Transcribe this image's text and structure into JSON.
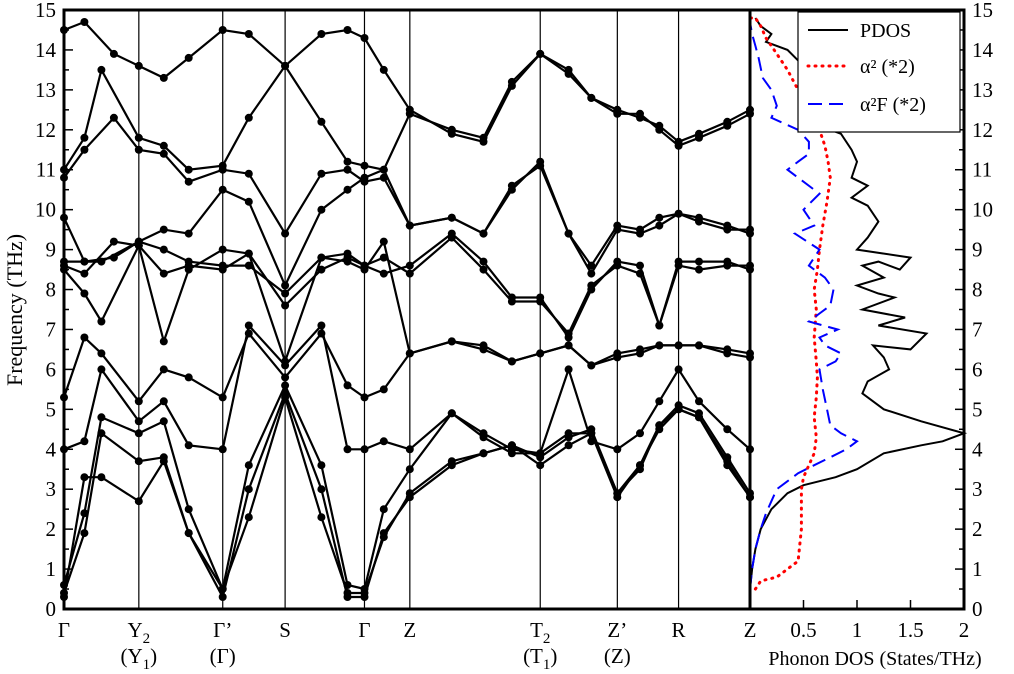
{
  "chart_data": [
    {
      "type": "line",
      "ylabel": "Frequency (THz)",
      "ylim": [
        0,
        15
      ],
      "yticks": [
        "0",
        "1",
        "2",
        "3",
        "4",
        "5",
        "6",
        "7",
        "8",
        "9",
        "10",
        "11",
        "12",
        "13",
        "14",
        "15"
      ],
      "kpoints": [
        {
          "label": "Γ",
          "sub": "",
          "second": ""
        },
        {
          "label": "Y",
          "sub": "2",
          "second": "(Y",
          "second_sub": "1",
          "second_tail": ")"
        },
        {
          "label": "Γ’",
          "sub": "",
          "second": "(Γ)"
        },
        {
          "label": "S",
          "sub": "",
          "second": ""
        },
        {
          "label": "Γ",
          "sub": "",
          "second": ""
        },
        {
          "label": "Z",
          "sub": "",
          "second": ""
        },
        {
          "label": "T",
          "sub": "2",
          "second": "(T",
          "second_sub": "1",
          "second_tail": ")"
        },
        {
          "label": "Z’",
          "sub": "",
          "second": "(Z)"
        },
        {
          "label": "R",
          "sub": "",
          "second": ""
        },
        {
          "label": "Z",
          "sub": "",
          "second": ""
        }
      ],
      "kpoint_positions": [
        0,
        0.66,
        1.4,
        1.95,
        2.65,
        3.05,
        4.2,
        4.88,
        5.42,
        6.05
      ],
      "series": [
        {
          "x": [
            0,
            0.18,
            0.44,
            0.66,
            0.88,
            1.1,
            1.4,
            1.63,
            1.95,
            2.27,
            2.5,
            2.65,
            2.82,
            3.05,
            3.42,
            3.7,
            3.95,
            4.2,
            4.45,
            4.65,
            4.88,
            5.08,
            5.25,
            5.42,
            5.6,
            5.85,
            6.05
          ],
          "y": [
            14.5,
            14.7,
            13.9,
            13.6,
            13.3,
            13.8,
            14.5,
            14.4,
            13.6,
            14.4,
            14.5,
            14.3,
            13.5,
            12.5,
            11.9,
            11.7,
            13.1,
            13.9,
            13.4,
            12.8,
            12.4,
            12.4,
            12.0,
            11.6,
            11.8,
            12.1,
            12.4
          ]
        },
        {
          "x": [
            0,
            0.18,
            0.33,
            0.66,
            0.88,
            1.1,
            1.4,
            1.63,
            1.95,
            2.27,
            2.5,
            2.65,
            2.82,
            3.05,
            3.42,
            3.7,
            3.95,
            4.2,
            4.45,
            4.65,
            4.88,
            5.08,
            5.25,
            5.42,
            5.6,
            5.85,
            6.05
          ],
          "y": [
            11.0,
            11.8,
            13.5,
            11.8,
            11.6,
            11.0,
            11.1,
            12.3,
            13.6,
            12.2,
            11.2,
            11.1,
            11.0,
            12.4,
            12.0,
            11.8,
            13.2,
            13.9,
            13.5,
            12.8,
            12.5,
            12.3,
            12.1,
            11.7,
            11.9,
            12.2,
            12.5
          ]
        },
        {
          "x": [
            0,
            0.18,
            0.44,
            0.66,
            0.88,
            1.1,
            1.4,
            1.63,
            1.95,
            2.27,
            2.5,
            2.65,
            2.82,
            3.05,
            3.42,
            3.7,
            3.95,
            4.2,
            4.45,
            4.65,
            4.88,
            5.08,
            5.25,
            5.42,
            5.6,
            5.85,
            6.05
          ],
          "y": [
            10.8,
            11.5,
            12.3,
            11.5,
            11.4,
            10.7,
            11.0,
            10.9,
            9.4,
            10.9,
            11.0,
            10.7,
            10.8,
            9.6,
            9.8,
            9.4,
            10.6,
            11.1,
            9.4,
            8.6,
            9.6,
            9.5,
            9.8,
            9.9,
            9.7,
            9.5,
            9.5
          ]
        },
        {
          "x": [
            0,
            0.18,
            0.44,
            0.66,
            0.88,
            1.1,
            1.4,
            1.63,
            1.95,
            2.27,
            2.5,
            2.65,
            2.82,
            3.05,
            3.42,
            3.7,
            3.95,
            4.2,
            4.45,
            4.65,
            4.88,
            5.08,
            5.25,
            5.42,
            5.6,
            5.85,
            6.05
          ],
          "y": [
            9.8,
            8.7,
            8.8,
            9.2,
            9.5,
            9.4,
            10.5,
            10.2,
            8.1,
            10.0,
            10.5,
            10.8,
            11.0,
            9.6,
            9.8,
            9.4,
            10.5,
            11.2,
            9.4,
            8.4,
            9.5,
            9.4,
            9.6,
            9.9,
            9.8,
            9.6,
            9.4
          ]
        },
        {
          "x": [
            0,
            0.18,
            0.33,
            0.66,
            0.88,
            1.1,
            1.4,
            1.63,
            1.95,
            2.27,
            2.5,
            2.65,
            2.82,
            3.05,
            3.42,
            3.7,
            3.95,
            4.2,
            4.45,
            4.65,
            4.88,
            5.08,
            5.25,
            5.42,
            5.6,
            5.85,
            6.05
          ],
          "y": [
            8.7,
            8.7,
            8.7,
            9.2,
            9.0,
            8.7,
            8.6,
            8.6,
            7.9,
            8.8,
            8.9,
            8.6,
            8.4,
            8.6,
            9.4,
            8.7,
            7.8,
            7.8,
            6.8,
            8.0,
            8.7,
            8.6,
            7.1,
            8.7,
            8.7,
            8.7,
            8.5
          ]
        },
        {
          "x": [
            0,
            0.18,
            0.33,
            0.66,
            0.88,
            1.1,
            1.4,
            1.63,
            1.95,
            2.27,
            2.5,
            2.65,
            2.82,
            3.05,
            3.42,
            3.7,
            3.95,
            4.2,
            4.45,
            4.65,
            4.88,
            5.08,
            5.25,
            5.42,
            5.6,
            5.85,
            6.05
          ],
          "y": [
            8.5,
            7.9,
            7.2,
            9.1,
            8.4,
            8.6,
            8.5,
            8.9,
            7.6,
            8.5,
            8.8,
            8.6,
            8.8,
            8.4,
            9.3,
            8.5,
            7.7,
            7.7,
            6.9,
            8.1,
            8.6,
            8.4,
            7.1,
            8.6,
            8.5,
            8.6,
            8.6
          ]
        },
        {
          "x": [
            0,
            0.18,
            0.44,
            0.66,
            0.88,
            1.1,
            1.4,
            1.63,
            1.95,
            2.27,
            2.5,
            2.65,
            2.82,
            3.05,
            3.42,
            3.7,
            3.95,
            4.2,
            4.45,
            4.65,
            4.88,
            5.08,
            5.25,
            5.42,
            5.6,
            5.85,
            6.05
          ],
          "y": [
            8.6,
            8.4,
            9.2,
            9.1,
            6.7,
            8.5,
            9.0,
            8.9,
            6.2,
            8.8,
            8.7,
            8.5,
            9.2,
            6.4,
            6.7,
            6.5,
            6.2,
            6.4,
            6.6,
            6.1,
            6.4,
            6.5,
            6.6,
            6.6,
            6.6,
            6.5,
            6.4
          ]
        },
        {
          "x": [
            0,
            0.18,
            0.33,
            0.66,
            0.88,
            1.1,
            1.4,
            1.63,
            1.95,
            2.27,
            2.5,
            2.65,
            2.82,
            3.05,
            3.42,
            3.7,
            3.95,
            4.2,
            4.45,
            4.65,
            4.88,
            5.08,
            5.25,
            5.42,
            5.6,
            5.85,
            6.05
          ],
          "y": [
            5.3,
            6.8,
            6.4,
            5.2,
            6.0,
            5.8,
            5.3,
            6.9,
            5.8,
            6.9,
            5.6,
            5.3,
            5.5,
            6.4,
            6.7,
            6.6,
            6.2,
            6.4,
            6.6,
            6.1,
            6.3,
            6.4,
            6.6,
            6.6,
            6.6,
            6.4,
            6.3
          ]
        },
        {
          "x": [
            0,
            0.18,
            0.33,
            0.66,
            0.88,
            1.1,
            1.4,
            1.63,
            1.95,
            2.27,
            2.5,
            2.65,
            2.82,
            3.05,
            3.42,
            3.7,
            3.95,
            4.2,
            4.45,
            4.65,
            4.88,
            5.08,
            5.25,
            5.42,
            5.6,
            5.85,
            6.05
          ],
          "y": [
            4.0,
            4.2,
            6.0,
            4.7,
            5.2,
            4.1,
            4.0,
            7.1,
            6.1,
            7.1,
            4.0,
            4.0,
            4.2,
            4.0,
            4.9,
            4.4,
            4.0,
            3.9,
            6.0,
            4.2,
            4.0,
            4.4,
            5.2,
            6.0,
            5.2,
            4.5,
            4.0
          ]
        },
        {
          "x": [
            0,
            0.18,
            0.33,
            0.66,
            0.88,
            1.1,
            1.4,
            1.63,
            1.95,
            2.27,
            2.5,
            2.65,
            2.82,
            3.05,
            3.42,
            3.7,
            3.95,
            4.2,
            4.45,
            4.65,
            4.88,
            5.08,
            5.25,
            5.42,
            5.6,
            5.85,
            6.05
          ],
          "y": [
            0.6,
            2.4,
            4.8,
            4.4,
            4.7,
            2.5,
            0.5,
            3.6,
            5.6,
            3.6,
            0.6,
            0.5,
            2.5,
            3.5,
            4.9,
            4.3,
            3.9,
            3.9,
            4.4,
            4.4,
            2.9,
            3.6,
            4.6,
            5.1,
            4.9,
            3.8,
            2.9
          ]
        },
        {
          "x": [
            0,
            0.18,
            0.33,
            0.66,
            0.88,
            1.1,
            1.4,
            1.63,
            1.95,
            2.27,
            2.5,
            2.65,
            2.82,
            3.05,
            3.42,
            3.7,
            3.95,
            4.2,
            4.45,
            4.65,
            4.88,
            5.08,
            5.25,
            5.42,
            5.6,
            5.85,
            6.05
          ],
          "y": [
            0.4,
            1.9,
            4.4,
            3.7,
            3.8,
            1.9,
            0.3,
            3.0,
            5.4,
            3.0,
            0.3,
            0.3,
            1.9,
            2.8,
            3.6,
            3.9,
            4.1,
            3.6,
            4.1,
            4.4,
            2.8,
            3.6,
            4.5,
            5.0,
            4.8,
            3.6,
            2.8
          ]
        },
        {
          "x": [
            0,
            0.18,
            0.33,
            0.66,
            0.88,
            1.1,
            1.4,
            1.63,
            1.95,
            2.27,
            2.5,
            2.65,
            2.82,
            3.05,
            3.42,
            3.7,
            3.95,
            4.2,
            4.45,
            4.65,
            4.88,
            5.08,
            5.25,
            5.42,
            5.6,
            5.85,
            6.05
          ],
          "y": [
            0.3,
            3.3,
            3.3,
            2.7,
            3.7,
            1.9,
            0.5,
            2.3,
            5.3,
            2.3,
            0.4,
            0.4,
            1.8,
            2.9,
            3.7,
            3.9,
            4.1,
            3.8,
            4.3,
            4.5,
            2.9,
            3.5,
            4.6,
            5.0,
            4.8,
            3.7,
            2.8
          ]
        }
      ]
    },
    {
      "type": "line",
      "xlabel": "Phonon DOS (States/THz)",
      "xlim": [
        0,
        2
      ],
      "ylim": [
        0,
        15
      ],
      "xticks": [
        "Z",
        "0.5",
        "1",
        "1.5",
        "2"
      ],
      "yticks": [
        "0",
        "1",
        "2",
        "3",
        "4",
        "5",
        "6",
        "7",
        "8",
        "9",
        "10",
        "11",
        "12",
        "13",
        "14",
        "15"
      ],
      "legend_position": "top-right",
      "series": [
        {
          "name": "PDOS",
          "color": "#000000",
          "style": "solid",
          "x": [
            0.0,
            0.02,
            0.05,
            0.1,
            0.2,
            0.35,
            0.5,
            0.65,
            0.8,
            1.0,
            1.25,
            1.6,
            1.8,
            1.9,
            2.0,
            1.6,
            1.25,
            1.05,
            1.1,
            1.3,
            1.25,
            1.15,
            1.5,
            1.65,
            1.2,
            1.45,
            1.05,
            1.35,
            1.2,
            1.0,
            1.25,
            1.05,
            1.2,
            1.4,
            1.5,
            1.0,
            1.1,
            1.2,
            1.1,
            0.95,
            1.1,
            0.95,
            1.0,
            0.95,
            0.85,
            0.65,
            0.95,
            0.8,
            0.7,
            0.6,
            0.5,
            0.35,
            0.15,
            0.2,
            0.1,
            0.05
          ],
          "y": [
            0.5,
            1.0,
            1.5,
            2.0,
            2.5,
            2.9,
            3.1,
            3.2,
            3.3,
            3.5,
            3.9,
            4.1,
            4.2,
            4.3,
            4.4,
            4.7,
            5.0,
            5.4,
            5.7,
            6.0,
            6.3,
            6.6,
            6.5,
            6.9,
            7.1,
            7.3,
            7.5,
            7.8,
            7.9,
            8.1,
            8.3,
            8.6,
            8.7,
            8.5,
            8.8,
            9.0,
            9.3,
            9.7,
            10.1,
            10.3,
            10.6,
            10.8,
            11.2,
            11.5,
            11.9,
            12.1,
            12.4,
            12.7,
            13.0,
            13.4,
            13.6,
            14.0,
            14.2,
            14.4,
            14.6,
            14.8
          ]
        },
        {
          "name": "α² (*2)",
          "color": "#ff0000",
          "style": "dotted",
          "x": [
            0.05,
            0.1,
            0.25,
            0.45,
            0.48,
            0.48,
            0.48,
            0.5,
            0.55,
            0.6,
            0.62,
            0.6,
            0.62,
            0.63,
            0.62,
            0.6,
            0.62,
            0.6,
            0.63,
            0.65,
            0.68,
            0.72,
            0.75,
            0.73,
            0.7,
            0.65,
            0.55,
            0.45,
            0.35,
            0.25,
            0.15,
            0.1,
            0.05,
            0.0
          ],
          "y": [
            0.5,
            0.7,
            0.8,
            1.2,
            2.0,
            2.5,
            3.0,
            3.3,
            3.6,
            3.9,
            4.3,
            4.8,
            5.3,
            5.8,
            6.2,
            6.8,
            7.5,
            8.0,
            8.5,
            9.0,
            9.6,
            10.2,
            10.8,
            11.2,
            11.6,
            12.0,
            12.5,
            13.0,
            13.5,
            13.9,
            14.3,
            14.6,
            14.8,
            14.8
          ]
        },
        {
          "name": "α²F (*2)",
          "color": "#0000ff",
          "style": "dashed",
          "x": [
            0.0,
            0.02,
            0.05,
            0.1,
            0.15,
            0.2,
            0.25,
            0.35,
            0.45,
            0.6,
            0.75,
            0.9,
            1.0,
            0.85,
            0.75,
            0.72,
            0.68,
            0.65,
            0.8,
            0.85,
            0.7,
            0.65,
            0.82,
            0.55,
            0.65,
            0.75,
            0.78,
            0.7,
            0.55,
            0.65,
            0.42,
            0.6,
            0.5,
            0.65,
            0.45,
            0.35,
            0.45,
            0.55,
            0.55,
            0.45,
            0.2,
            0.25,
            0.2,
            0.12,
            0.08,
            0.05,
            0.02,
            0.0
          ],
          "y": [
            0.5,
            1.0,
            1.5,
            2.0,
            2.4,
            2.7,
            3.0,
            3.2,
            3.4,
            3.6,
            3.8,
            4.0,
            4.2,
            4.4,
            4.6,
            5.0,
            5.5,
            6.0,
            6.2,
            6.4,
            6.6,
            6.8,
            7.0,
            7.2,
            7.4,
            7.6,
            8.0,
            8.3,
            8.6,
            9.0,
            9.4,
            9.6,
            10.0,
            10.4,
            10.8,
            11.0,
            11.2,
            11.4,
            11.7,
            12.0,
            12.3,
            12.6,
            13.0,
            13.3,
            13.8,
            14.1,
            14.4,
            14.7
          ]
        }
      ]
    }
  ]
}
